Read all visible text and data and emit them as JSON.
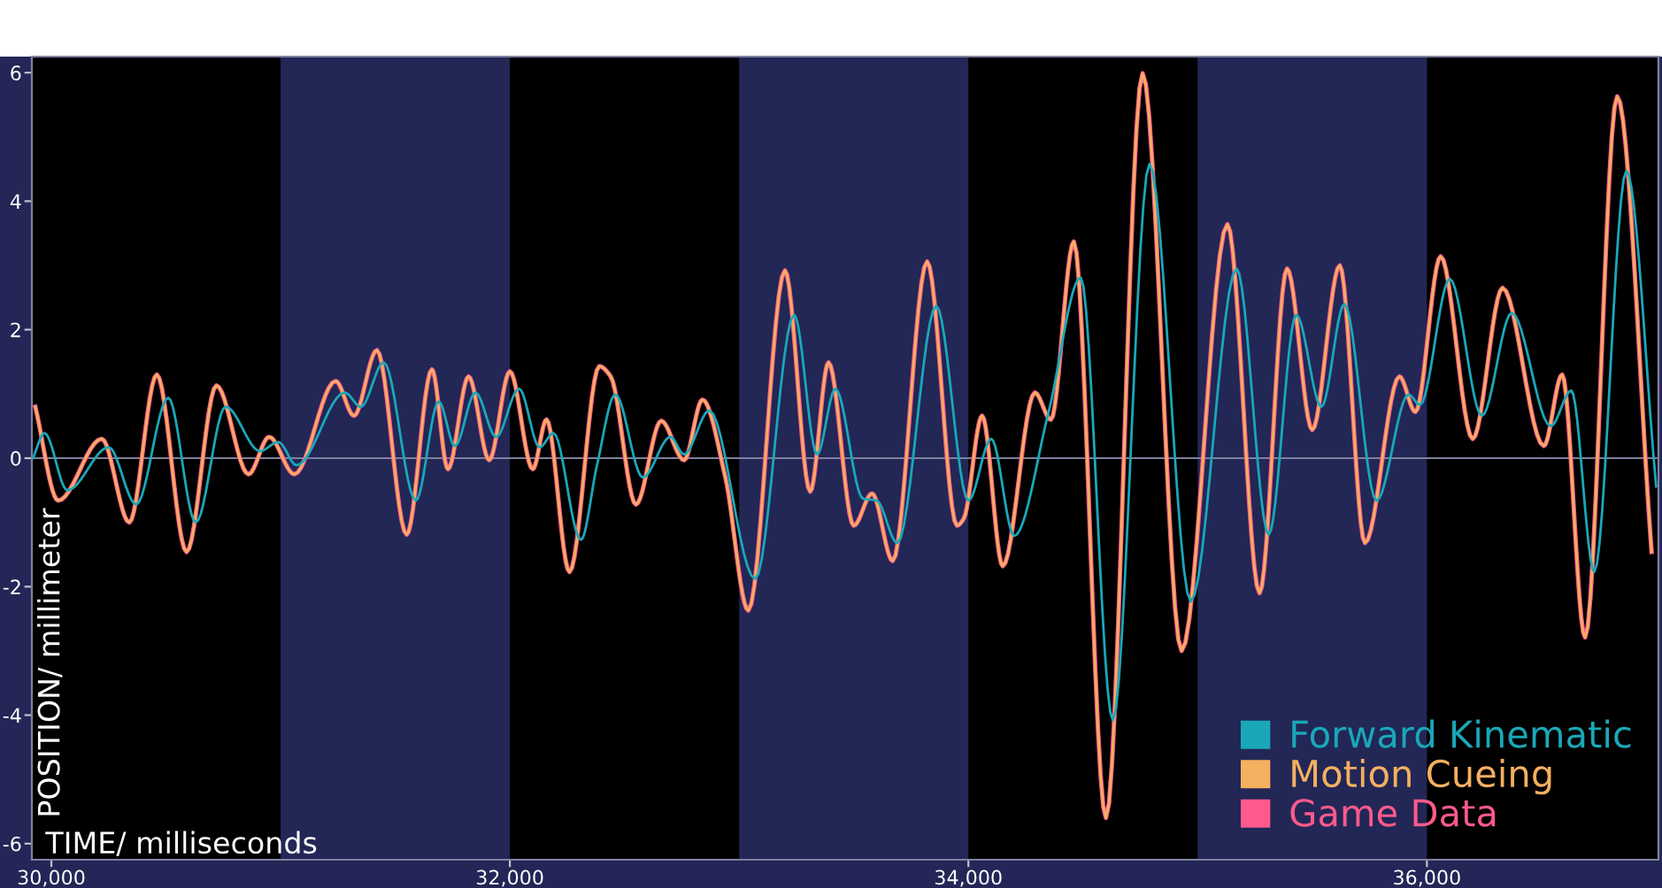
{
  "chart_data": {
    "type": "line",
    "xlabel": "TIME/ milliseconds",
    "ylabel": "POSITION/ millimeter",
    "xlim": [
      29915,
      37010
    ],
    "ylim": [
      -6.25,
      6.25
    ],
    "xticks": [
      {
        "value": 30000,
        "label": "30,000"
      },
      {
        "value": 32000,
        "label": "32,000"
      },
      {
        "value": 34000,
        "label": "34,000"
      },
      {
        "value": 36000,
        "label": "36,000"
      }
    ],
    "yticks": [
      -6,
      -4,
      -2,
      0,
      2,
      4,
      6
    ],
    "grid": false,
    "legend": "bottom right",
    "marker": "none",
    "line_style": "solid",
    "ref_lines": [
      {
        "axis": "y",
        "value": 0,
        "color": "#8080a0"
      }
    ],
    "bands": [
      {
        "axis": "x",
        "from": 31000,
        "to": 32000,
        "color": "#222756"
      },
      {
        "axis": "x",
        "from": 33000,
        "to": 34000,
        "color": "#222756"
      },
      {
        "axis": "x",
        "from": 35000,
        "to": 36000,
        "color": "#222756"
      }
    ],
    "series": [
      {
        "name": "Game Data",
        "color": "#ff5a8c",
        "x": [
          29930,
          30030,
          30220,
          30340,
          30460,
          30590,
          30720,
          30860,
          30950,
          31060,
          31240,
          31320,
          31420,
          31550,
          31660,
          31730,
          31820,
          31910,
          32000,
          32100,
          32160,
          32260,
          32390,
          32440,
          32550,
          32660,
          32760,
          32840,
          32940,
          33040,
          33200,
          33310,
          33390,
          33500,
          33580,
          33670,
          33820,
          33950,
          33980,
          34060,
          34150,
          34290,
          34360,
          34460,
          34600,
          34760,
          34930,
          35130,
          35270,
          35390,
          35500,
          35620,
          35730,
          35880,
          35950,
          36060,
          36200,
          36330,
          36510,
          36590,
          36690,
          36830,
          36980
        ],
        "values": [
          0.8,
          -0.66,
          0.3,
          -1.0,
          1.3,
          -1.46,
          1.13,
          -0.25,
          0.33,
          -0.25,
          1.2,
          0.66,
          1.68,
          -1.19,
          1.38,
          -0.17,
          1.27,
          -0.03,
          1.35,
          -0.17,
          0.6,
          -1.77,
          1.43,
          1.27,
          -0.72,
          0.58,
          -0.03,
          0.91,
          -0.3,
          -2.37,
          2.92,
          -0.52,
          1.49,
          -1.05,
          -0.55,
          -1.6,
          3.06,
          -1.05,
          -0.94,
          0.66,
          -1.68,
          1.02,
          0.6,
          3.37,
          -5.6,
          5.99,
          -3.0,
          3.64,
          -2.1,
          2.95,
          0.44,
          3.0,
          -1.32,
          1.27,
          0.72,
          3.14,
          0.3,
          2.65,
          0.19,
          1.3,
          -2.79,
          5.63,
          -1.46
        ]
      },
      {
        "name": "Motion Cueing",
        "color": "#f5b060",
        "x": [
          29930,
          30030,
          30220,
          30340,
          30460,
          30590,
          30720,
          30860,
          30950,
          31060,
          31240,
          31320,
          31420,
          31550,
          31660,
          31730,
          31820,
          31910,
          32000,
          32100,
          32160,
          32260,
          32390,
          32440,
          32550,
          32660,
          32760,
          32840,
          32940,
          33040,
          33200,
          33310,
          33390,
          33500,
          33580,
          33670,
          33820,
          33950,
          33980,
          34060,
          34150,
          34290,
          34360,
          34460,
          34600,
          34760,
          34930,
          35130,
          35270,
          35390,
          35500,
          35620,
          35730,
          35880,
          35950,
          36060,
          36200,
          36330,
          36510,
          36590,
          36690,
          36830,
          36980
        ],
        "values": [
          0.8,
          -0.66,
          0.3,
          -1.0,
          1.3,
          -1.46,
          1.13,
          -0.25,
          0.33,
          -0.25,
          1.2,
          0.66,
          1.68,
          -1.19,
          1.38,
          -0.17,
          1.27,
          -0.03,
          1.35,
          -0.17,
          0.6,
          -1.77,
          1.43,
          1.27,
          -0.72,
          0.58,
          -0.03,
          0.91,
          -0.3,
          -2.37,
          2.92,
          -0.52,
          1.49,
          -1.05,
          -0.55,
          -1.6,
          3.06,
          -1.05,
          -0.94,
          0.66,
          -1.68,
          1.02,
          0.6,
          3.37,
          -5.6,
          5.99,
          -3.0,
          3.64,
          -2.1,
          2.95,
          0.44,
          3.0,
          -1.32,
          1.27,
          0.72,
          3.14,
          0.3,
          2.65,
          0.19,
          1.3,
          -2.79,
          5.63,
          -1.46
        ]
      },
      {
        "name": "Forward Kinematic",
        "color": "#1aa8b8",
        "x": [
          29920,
          29970,
          30070,
          30250,
          30370,
          30510,
          30630,
          30760,
          30910,
          30990,
          31070,
          31280,
          31350,
          31450,
          31590,
          31690,
          31760,
          31850,
          31940,
          32040,
          32130,
          32190,
          32310,
          32380,
          32460,
          32580,
          32700,
          32760,
          32870,
          33070,
          33240,
          33340,
          33420,
          33540,
          33600,
          33690,
          33860,
          34000,
          34100,
          34200,
          34350,
          34490,
          34630,
          34790,
          34970,
          35170,
          35310,
          35430,
          35540,
          35640,
          35780,
          35920,
          35970,
          36100,
          36240,
          36370,
          36540,
          36630,
          36730,
          36870,
          37000
        ],
        "values": [
          0,
          0.39,
          -0.5,
          0.17,
          -0.72,
          0.94,
          -1.0,
          0.8,
          0.11,
          0.25,
          -0.11,
          1.02,
          0.8,
          1.49,
          -0.66,
          0.88,
          0.19,
          1.02,
          0.33,
          1.08,
          0.17,
          0.39,
          -1.27,
          -0.11,
          0.99,
          -0.3,
          0.33,
          0.06,
          0.74,
          -1.88,
          2.23,
          0.06,
          1.08,
          -0.63,
          -0.66,
          -1.32,
          2.37,
          -0.66,
          0.3,
          -1.21,
          0.72,
          2.81,
          -4.08,
          4.58,
          -2.23,
          2.95,
          -1.19,
          2.23,
          0.8,
          2.4,
          -0.66,
          0.99,
          0.83,
          2.79,
          0.66,
          2.26,
          0.5,
          1.05,
          -1.77,
          4.47,
          -0.44
        ]
      }
    ]
  }
}
